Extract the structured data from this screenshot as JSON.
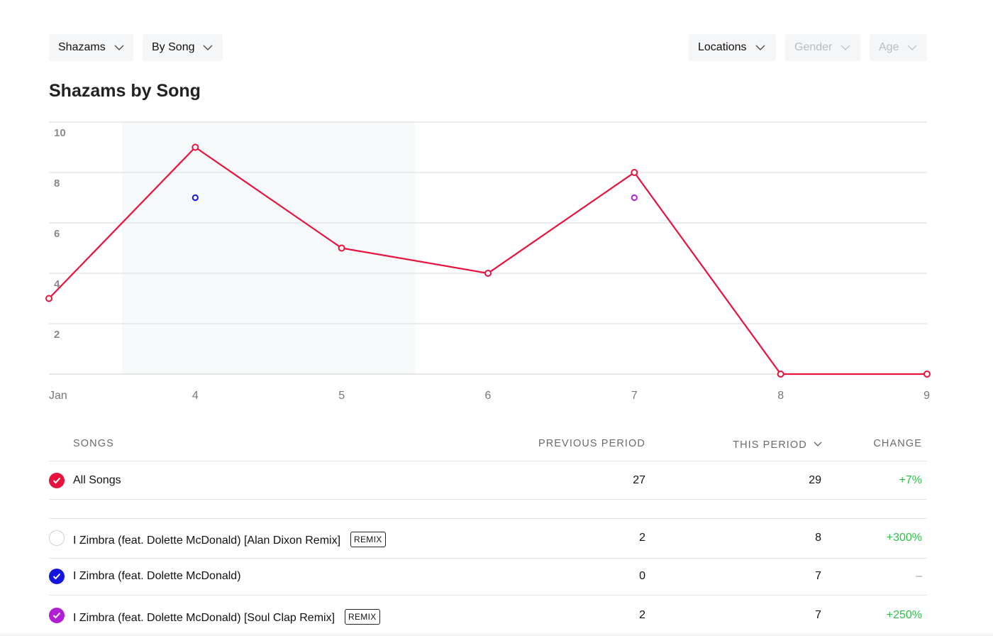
{
  "filters": {
    "metric": "Shazams",
    "grouping": "By Song",
    "locations": "Locations",
    "gender": "Gender",
    "age": "Age"
  },
  "title": "Shazams by Song",
  "chart_data": {
    "type": "line",
    "x": [
      "Jan",
      "4",
      "5",
      "6",
      "7",
      "8",
      "9"
    ],
    "yticks": [
      "2",
      "4",
      "6",
      "8",
      "10"
    ],
    "ylim": [
      0,
      10
    ],
    "highlight_range": [
      "4",
      "5"
    ],
    "series": [
      {
        "color": "#e8123c",
        "values": [
          3,
          9,
          5,
          4,
          8,
          0,
          0
        ]
      }
    ],
    "points": [
      {
        "x": "4",
        "y": 7,
        "color": "#1414e0"
      },
      {
        "x": "7",
        "y": 7,
        "color": "#b31fd6"
      }
    ],
    "grid": true
  },
  "table": {
    "headers": {
      "songs": "SONGS",
      "previous": "PREVIOUS PERIOD",
      "current": "THIS PERIOD",
      "change": "CHANGE"
    },
    "total": {
      "name": "All Songs",
      "previous": "27",
      "current": "29",
      "change": "+7%",
      "color": "#e8123c"
    },
    "rows": [
      {
        "name": "I Zimbra (feat. Dolette McDonald) [Alan Dixon Remix]",
        "badge": "REMIX",
        "previous": "2",
        "current": "8",
        "change": "+300%",
        "checked": false
      },
      {
        "name": "I Zimbra (feat. Dolette McDonald)",
        "badge": "",
        "previous": "0",
        "current": "7",
        "change": "–",
        "checked": true,
        "color": "#1414e0"
      },
      {
        "name": "I Zimbra (feat. Dolette McDonald) [Soul Clap Remix]",
        "badge": "REMIX",
        "previous": "2",
        "current": "7",
        "change": "+250%",
        "checked": true,
        "color": "#b31fd6"
      }
    ]
  }
}
